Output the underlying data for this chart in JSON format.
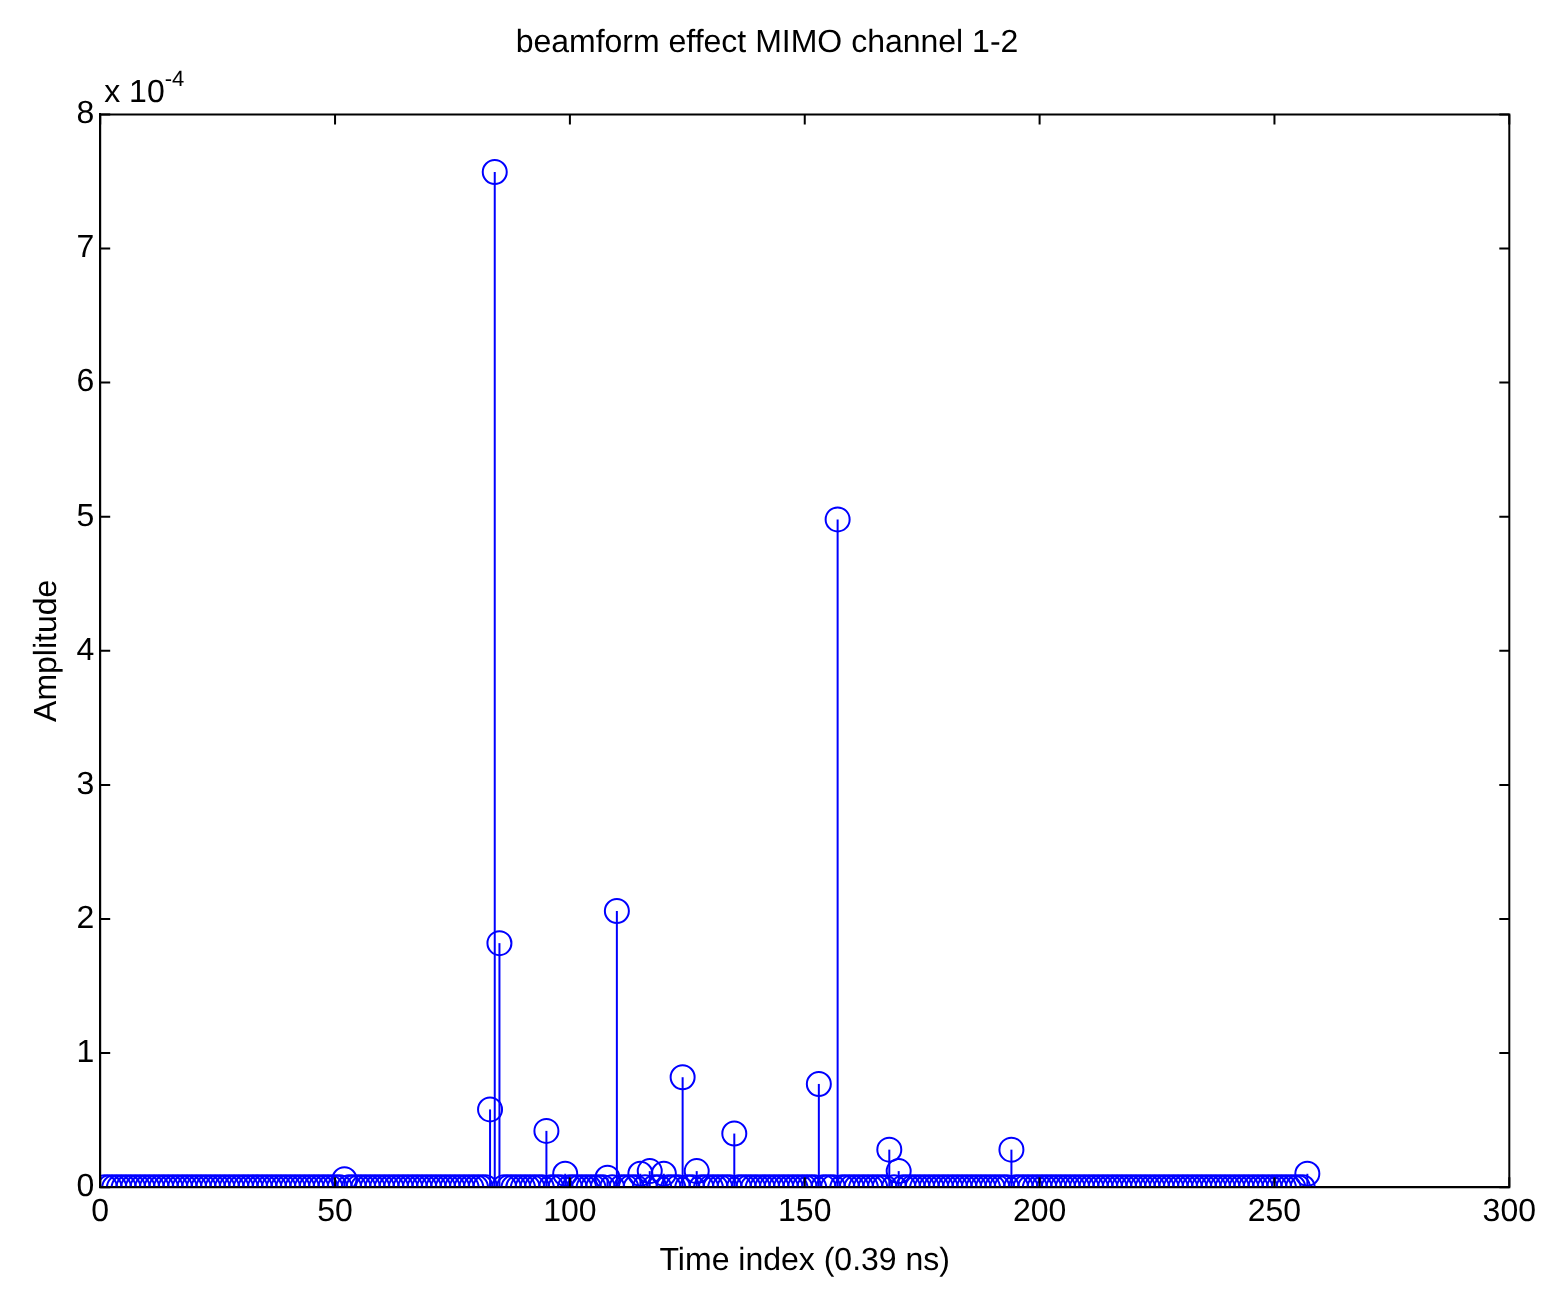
{
  "chart_data": {
    "type": "lollipop",
    "title": "beamform effect MIMO channel 1-2",
    "xlabel": "Time index (0.39 ns)",
    "ylabel": "Amplitude",
    "annotations": [
      "x 10$^{-4}$"
    ],
    "xlim": [
      0,
      300
    ],
    "xticks": [
      0,
      50,
      100,
      150,
      200,
      250,
      300
    ],
    "ylim": [
      0,
      8
    ],
    "yticks": [
      0,
      1,
      2,
      3,
      4,
      5,
      6,
      7,
      8
    ],
    "grid": false,
    "legend": false,
    "marker": "circle",
    "x": [
      1,
      2,
      3,
      4,
      5,
      6,
      7,
      8,
      9,
      10,
      11,
      12,
      13,
      14,
      15,
      16,
      17,
      18,
      19,
      20,
      21,
      22,
      23,
      24,
      25,
      26,
      27,
      28,
      29,
      30,
      31,
      32,
      33,
      34,
      35,
      36,
      37,
      38,
      39,
      40,
      41,
      42,
      43,
      44,
      45,
      46,
      47,
      48,
      49,
      50,
      51,
      52,
      53,
      54,
      55,
      56,
      57,
      58,
      59,
      60,
      61,
      62,
      63,
      64,
      65,
      66,
      67,
      68,
      69,
      70,
      71,
      72,
      73,
      74,
      75,
      76,
      77,
      78,
      79,
      80,
      81,
      82,
      83,
      84,
      85,
      86,
      87,
      88,
      89,
      90,
      91,
      92,
      93,
      94,
      95,
      96,
      97,
      98,
      99,
      100,
      101,
      102,
      103,
      104,
      105,
      106,
      107,
      108,
      109,
      110,
      111,
      112,
      113,
      114,
      115,
      116,
      117,
      118,
      119,
      120,
      121,
      122,
      123,
      124,
      125,
      126,
      127,
      128,
      129,
      130,
      131,
      132,
      133,
      134,
      135,
      136,
      137,
      138,
      139,
      140,
      141,
      142,
      143,
      144,
      145,
      146,
      147,
      148,
      149,
      150,
      151,
      152,
      153,
      154,
      155,
      156,
      157,
      158,
      159,
      160,
      161,
      162,
      163,
      164,
      165,
      166,
      167,
      168,
      169,
      170,
      171,
      172,
      173,
      174,
      175,
      176,
      177,
      178,
      179,
      180,
      181,
      182,
      183,
      184,
      185,
      186,
      187,
      188,
      189,
      190,
      191,
      192,
      193,
      194,
      195,
      196,
      197,
      198,
      199,
      200,
      201,
      202,
      203,
      204,
      205,
      206,
      207,
      208,
      209,
      210,
      211,
      212,
      213,
      214,
      215,
      216,
      217,
      218,
      219,
      220,
      221,
      222,
      223,
      224,
      225,
      226,
      227,
      228,
      229,
      230,
      231,
      232,
      233,
      234,
      235,
      236,
      237,
      238,
      239,
      240,
      241,
      242,
      243,
      244,
      245,
      246,
      247,
      248,
      249,
      250,
      251,
      252,
      253,
      254,
      255,
      256,
      257
    ],
    "series": [
      {
        "color": "#0000ff",
        "values": [
          0,
          0,
          0,
          0,
          0,
          0,
          0,
          0,
          0,
          0,
          0,
          0,
          0,
          0,
          0,
          0,
          0,
          0,
          0,
          0,
          0,
          0,
          0,
          0,
          0,
          0,
          0,
          0,
          0,
          0,
          0,
          0,
          0,
          0,
          0,
          0,
          0,
          0,
          0,
          0,
          0,
          0,
          0,
          0,
          0,
          0,
          0,
          0,
          0,
          0,
          0,
          0.06,
          0,
          0,
          0,
          0,
          0,
          0,
          0,
          0,
          0,
          0,
          0,
          0,
          0,
          0,
          0,
          0,
          0,
          0,
          0,
          0,
          0,
          0,
          0,
          0,
          0,
          0,
          0,
          0,
          0,
          0,
          0.58,
          7.57,
          1.82,
          0,
          0,
          0,
          0,
          0,
          0,
          0,
          0,
          0,
          0.42,
          0,
          0,
          0,
          0.1,
          0,
          0,
          0,
          0,
          0,
          0,
          0,
          0,
          0.07,
          0,
          2.06,
          0,
          0,
          0,
          0,
          0.1,
          0,
          0.12,
          0,
          0,
          0.1,
          0,
          0,
          0,
          0.82,
          0,
          0,
          0.12,
          0,
          0,
          0,
          0,
          0,
          0,
          0,
          0.4,
          0,
          0,
          0,
          0,
          0,
          0,
          0,
          0,
          0,
          0,
          0,
          0,
          0,
          0,
          0,
          0,
          0,
          0.77,
          0,
          0,
          0,
          4.98,
          0,
          0,
          0,
          0,
          0,
          0,
          0,
          0,
          0,
          0,
          0.28,
          0,
          0.12,
          0,
          0,
          0,
          0,
          0,
          0,
          0,
          0,
          0,
          0,
          0,
          0,
          0,
          0,
          0,
          0,
          0,
          0,
          0,
          0,
          0,
          0,
          0,
          0.28,
          0,
          0,
          0,
          0,
          0,
          0,
          0,
          0,
          0,
          0,
          0,
          0,
          0,
          0,
          0,
          0,
          0,
          0,
          0,
          0,
          0,
          0,
          0,
          0,
          0,
          0,
          0,
          0,
          0,
          0,
          0,
          0,
          0,
          0,
          0,
          0,
          0,
          0,
          0,
          0,
          0,
          0,
          0,
          0,
          0,
          0,
          0,
          0,
          0,
          0,
          0,
          0,
          0,
          0,
          0,
          0,
          0,
          0,
          0,
          0,
          0,
          0,
          0.1
        ]
      }
    ]
  }
}
